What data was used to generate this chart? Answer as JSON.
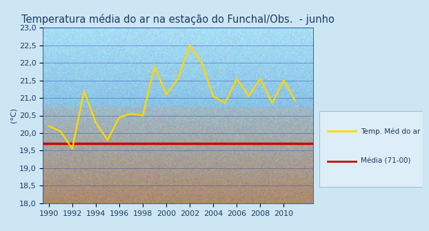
{
  "title": "Temperatura média do ar na estação do Funchal/Obs.  - junho",
  "title_color": "#1F3864",
  "ylabel": "(°C)",
  "ylim": [
    18.0,
    23.0
  ],
  "yticks": [
    18.0,
    18.5,
    19.0,
    19.5,
    20.0,
    20.5,
    21.0,
    21.5,
    22.0,
    22.5,
    23.0
  ],
  "xlim": [
    1989.5,
    2012.5
  ],
  "xticks": [
    1990,
    1992,
    1994,
    1996,
    1998,
    2000,
    2002,
    2004,
    2006,
    2008,
    2010
  ],
  "years": [
    1990,
    1991,
    1992,
    1993,
    1994,
    1995,
    1996,
    1997,
    1998,
    1999,
    2000,
    2001,
    2002,
    2003,
    2004,
    2005,
    2006,
    2007,
    2008,
    2009,
    2010,
    2011
  ],
  "temps": [
    20.2,
    20.05,
    19.55,
    21.2,
    20.3,
    19.8,
    20.45,
    20.55,
    20.5,
    21.9,
    21.1,
    21.55,
    22.5,
    22.0,
    21.05,
    20.85,
    21.55,
    21.05,
    21.55,
    20.85,
    21.5,
    20.9
  ],
  "mean_value": 19.7,
  "line_color": "#FFD700",
  "mean_color": "#CC0000",
  "legend_line_label": "Temp. Méd do ar",
  "legend_mean_label": "Média (71-00)",
  "bg_color": "#cce6f4",
  "fig_width": 6.22,
  "fig_height": 3.35,
  "title_fontsize": 10.5,
  "axis_label_fontsize": 8,
  "tick_fontsize": 8
}
